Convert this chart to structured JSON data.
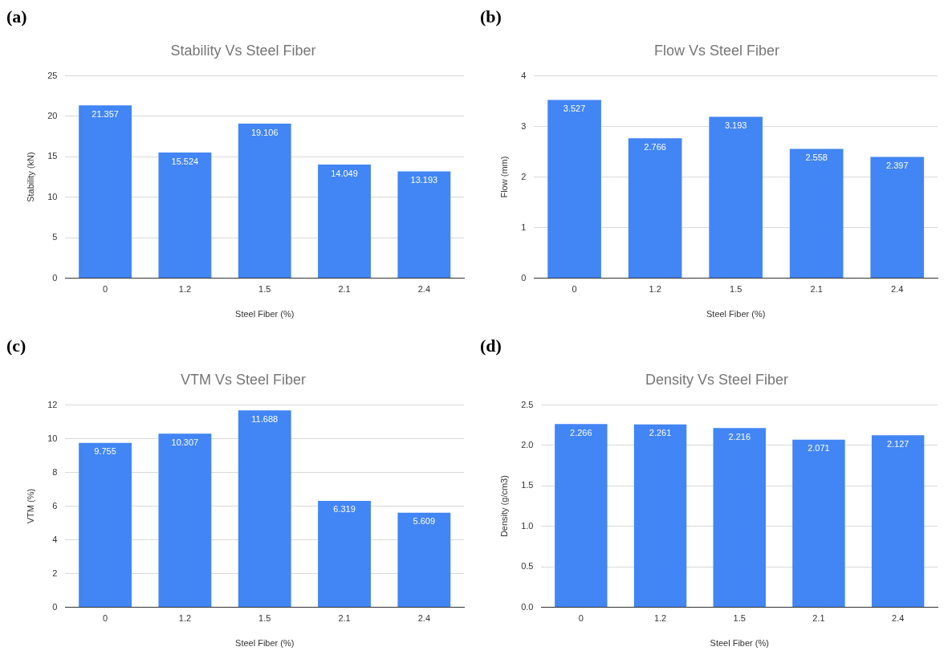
{
  "chart_data": [
    {
      "type": "bar",
      "title": "Stability Vs Steel Fiber",
      "xlabel": "Steel Fiber (%)",
      "ylabel": "Stability (kN)",
      "annotations": [
        "(a)"
      ],
      "categories": [
        "0",
        "1.2",
        "1.5",
        "2.1",
        "2.4"
      ],
      "values": [
        21.357,
        15.524,
        19.106,
        14.049,
        13.193
      ],
      "color": "#4285f4",
      "ylim": [
        0,
        25
      ],
      "yticks": [
        0,
        5,
        10,
        15,
        20,
        25
      ],
      "grid": "y",
      "data_labels": true,
      "legend": false
    },
    {
      "type": "bar",
      "title": "Flow Vs Steel Fiber",
      "xlabel": "Steel Fiber (%)",
      "ylabel": "Flow (mm)",
      "annotations": [
        "(b)"
      ],
      "categories": [
        "0",
        "1.2",
        "1.5",
        "2.1",
        "2.4"
      ],
      "values": [
        3.527,
        2.766,
        3.193,
        2.558,
        2.397
      ],
      "color": "#4285f4",
      "ylim": [
        0,
        4
      ],
      "yticks": [
        0,
        1,
        2,
        3,
        4
      ],
      "grid": "y",
      "data_labels": true,
      "legend": false
    },
    {
      "type": "bar",
      "title": "VTM Vs Steel Fiber",
      "xlabel": "Steel Fiber (%)",
      "ylabel": "VTM (%)",
      "annotations": [
        "(c)"
      ],
      "categories": [
        "0",
        "1.2",
        "1.5",
        "2.1",
        "2.4"
      ],
      "values": [
        9.755,
        10.307,
        11.688,
        6.319,
        5.609
      ],
      "color": "#4285f4",
      "ylim": [
        0,
        12
      ],
      "yticks": [
        0,
        2,
        4,
        6,
        8,
        10,
        12
      ],
      "grid": "y",
      "data_labels": true,
      "legend": false
    },
    {
      "type": "bar",
      "title": "Density Vs Steel Fiber",
      "xlabel": "Steel Fiber (%)",
      "ylabel": "Density (g/cm3)",
      "annotations": [
        "(d)"
      ],
      "categories": [
        "0",
        "1.2",
        "1.5",
        "2.1",
        "2.4"
      ],
      "values": [
        2.266,
        2.261,
        2.216,
        2.071,
        2.127
      ],
      "color": "#4285f4",
      "ylim": [
        0,
        2.5
      ],
      "yticks": [
        {
          "value": 0,
          "label": "0.0"
        },
        {
          "value": 0.5,
          "label": "0.5"
        },
        {
          "value": 1,
          "label": "1.0"
        },
        {
          "value": 1.5,
          "label": "1.5"
        },
        {
          "value": 2,
          "label": "2.0"
        },
        2.5
      ],
      "grid": "y",
      "data_labels": true,
      "legend": false
    }
  ]
}
